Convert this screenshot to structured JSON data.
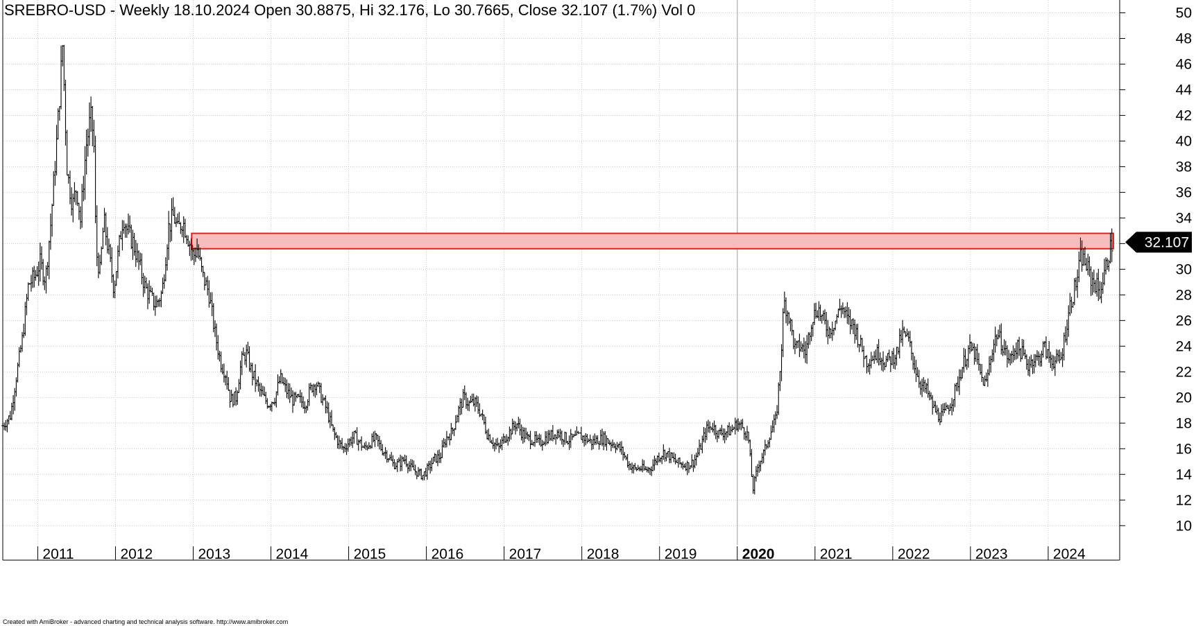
{
  "chart_data": {
    "type": "ohlc",
    "title": "SREBRO-USD - Weekly 18.10.2024 Open 30.8875, Hi 32.176, Lo 30.7665, Close 32.107 (1.7%) Vol 0",
    "last_value_label": "32.107",
    "footer": "Created with AmiBroker - advanced charting and technical analysis software. http://www.amibroker.com",
    "y_axis": {
      "min": 8.5,
      "max": 51,
      "ticks": [
        10,
        12,
        14,
        16,
        18,
        20,
        22,
        24,
        26,
        28,
        30,
        32,
        34,
        36,
        38,
        40,
        42,
        44,
        46,
        48,
        50
      ],
      "labels": [
        "10",
        "12",
        "14",
        "16",
        "18",
        "20",
        "22",
        "24",
        "26",
        "28",
        "30",
        "",
        "34",
        "36",
        "38",
        "40",
        "42",
        "44",
        "46",
        "48",
        "50"
      ],
      "position": "right"
    },
    "x_axis": {
      "start": 2010.55,
      "end": 2024.92,
      "ticks": [
        2011,
        2012,
        2013,
        2014,
        2015,
        2016,
        2017,
        2018,
        2019,
        2020,
        2021,
        2022,
        2023,
        2024
      ],
      "labels": [
        "2011",
        "2012",
        "2013",
        "2014",
        "2015",
        "2016",
        "2017",
        "2018",
        "2019",
        "2020",
        "2021",
        "2022",
        "2023",
        "2024"
      ],
      "bold_label": "2020"
    },
    "grid": true,
    "resistance_zone": {
      "from_x": 2012.98,
      "to_x": 2024.84,
      "low": 31.6,
      "high": 32.8,
      "fill": "#f7bcbc",
      "stroke": "#e8201a"
    },
    "price_path": [
      [
        2010.55,
        17.8
      ],
      [
        2010.65,
        18.6
      ],
      [
        2010.72,
        21.5
      ],
      [
        2010.8,
        24.5
      ],
      [
        2010.88,
        28.8
      ],
      [
        2010.96,
        29.4
      ],
      [
        2011.03,
        30.5
      ],
      [
        2011.1,
        29.2
      ],
      [
        2011.17,
        33.8
      ],
      [
        2011.25,
        40.5
      ],
      [
        2011.32,
        47.5
      ],
      [
        2011.38,
        37.5
      ],
      [
        2011.45,
        35.0
      ],
      [
        2011.5,
        36.5
      ],
      [
        2011.55,
        33.8
      ],
      [
        2011.62,
        39.5
      ],
      [
        2011.68,
        41.8
      ],
      [
        2011.72,
        40.4
      ],
      [
        2011.75,
        31.4
      ],
      [
        2011.8,
        29.8
      ],
      [
        2011.85,
        33.8
      ],
      [
        2011.92,
        31.0
      ],
      [
        2011.98,
        28.5
      ],
      [
        2012.04,
        31.5
      ],
      [
        2012.1,
        34.2
      ],
      [
        2012.16,
        32.8
      ],
      [
        2012.22,
        32.2
      ],
      [
        2012.3,
        30.5
      ],
      [
        2012.38,
        28.6
      ],
      [
        2012.45,
        27.8
      ],
      [
        2012.52,
        27.2
      ],
      [
        2012.6,
        28.2
      ],
      [
        2012.68,
        33.2
      ],
      [
        2012.75,
        34.2
      ],
      [
        2012.8,
        33.0
      ],
      [
        2012.86,
        33.8
      ],
      [
        2012.92,
        32.8
      ],
      [
        2013.0,
        31.0
      ],
      [
        2013.05,
        31.6
      ],
      [
        2013.12,
        29.5
      ],
      [
        2013.2,
        28.2
      ],
      [
        2013.28,
        25.0
      ],
      [
        2013.35,
        22.8
      ],
      [
        2013.42,
        21.8
      ],
      [
        2013.48,
        19.8
      ],
      [
        2013.55,
        20.0
      ],
      [
        2013.62,
        22.8
      ],
      [
        2013.68,
        23.5
      ],
      [
        2013.75,
        22.0
      ],
      [
        2013.82,
        21.0
      ],
      [
        2013.9,
        20.0
      ],
      [
        2013.97,
        19.5
      ],
      [
        2014.05,
        20.0
      ],
      [
        2014.12,
        21.5
      ],
      [
        2014.2,
        20.5
      ],
      [
        2014.28,
        19.8
      ],
      [
        2014.36,
        19.8
      ],
      [
        2014.44,
        19.5
      ],
      [
        2014.52,
        20.8
      ],
      [
        2014.58,
        21.2
      ],
      [
        2014.65,
        20.0
      ],
      [
        2014.72,
        19.0
      ],
      [
        2014.8,
        17.3
      ],
      [
        2014.87,
        16.5
      ],
      [
        2014.93,
        16.0
      ],
      [
        2015.0,
        16.5
      ],
      [
        2015.07,
        17.0
      ],
      [
        2015.14,
        16.5
      ],
      [
        2015.2,
        16.0
      ],
      [
        2015.28,
        16.5
      ],
      [
        2015.35,
        16.8
      ],
      [
        2015.42,
        16.0
      ],
      [
        2015.5,
        15.5
      ],
      [
        2015.57,
        14.8
      ],
      [
        2015.64,
        14.8
      ],
      [
        2015.72,
        15.2
      ],
      [
        2015.8,
        14.5
      ],
      [
        2015.87,
        14.2
      ],
      [
        2015.95,
        13.9
      ],
      [
        2016.03,
        14.5
      ],
      [
        2016.1,
        15.2
      ],
      [
        2016.18,
        15.4
      ],
      [
        2016.25,
        16.8
      ],
      [
        2016.33,
        17.3
      ],
      [
        2016.4,
        18.8
      ],
      [
        2016.48,
        20.0
      ],
      [
        2016.55,
        19.5
      ],
      [
        2016.62,
        19.6
      ],
      [
        2016.7,
        18.8
      ],
      [
        2016.78,
        17.2
      ],
      [
        2016.86,
        16.5
      ],
      [
        2016.93,
        16.0
      ],
      [
        2017.0,
        16.8
      ],
      [
        2017.08,
        17.4
      ],
      [
        2017.16,
        18.0
      ],
      [
        2017.22,
        17.3
      ],
      [
        2017.3,
        16.8
      ],
      [
        2017.38,
        16.7
      ],
      [
        2017.45,
        16.4
      ],
      [
        2017.52,
        16.8
      ],
      [
        2017.6,
        17.0
      ],
      [
        2017.68,
        17.3
      ],
      [
        2017.75,
        17.0
      ],
      [
        2017.82,
        16.7
      ],
      [
        2017.9,
        16.8
      ],
      [
        2017.97,
        17.0
      ],
      [
        2018.05,
        16.8
      ],
      [
        2018.13,
        16.5
      ],
      [
        2018.2,
        16.7
      ],
      [
        2018.28,
        16.8
      ],
      [
        2018.36,
        16.5
      ],
      [
        2018.44,
        16.3
      ],
      [
        2018.52,
        15.8
      ],
      [
        2018.6,
        14.8
      ],
      [
        2018.68,
        14.4
      ],
      [
        2018.75,
        14.5
      ],
      [
        2018.82,
        14.3
      ],
      [
        2018.9,
        14.6
      ],
      [
        2018.97,
        15.3
      ],
      [
        2019.05,
        15.7
      ],
      [
        2019.12,
        15.5
      ],
      [
        2019.2,
        15.0
      ],
      [
        2019.28,
        14.8
      ],
      [
        2019.36,
        14.7
      ],
      [
        2019.44,
        15.0
      ],
      [
        2019.52,
        16.0
      ],
      [
        2019.6,
        17.5
      ],
      [
        2019.68,
        17.8
      ],
      [
        2019.76,
        17.2
      ],
      [
        2019.84,
        17.3
      ],
      [
        2019.92,
        17.4
      ],
      [
        2020.0,
        18.0
      ],
      [
        2020.08,
        17.6
      ],
      [
        2020.14,
        17.0
      ],
      [
        2020.2,
        12.8
      ],
      [
        2020.27,
        14.8
      ],
      [
        2020.35,
        15.8
      ],
      [
        2020.42,
        17.2
      ],
      [
        2020.5,
        18.3
      ],
      [
        2020.56,
        23.0
      ],
      [
        2020.6,
        27.5
      ],
      [
        2020.66,
        26.5
      ],
      [
        2020.74,
        23.8
      ],
      [
        2020.82,
        24.0
      ],
      [
        2020.88,
        23.5
      ],
      [
        2020.96,
        26.2
      ],
      [
        2021.04,
        27.0
      ],
      [
        2021.1,
        26.0
      ],
      [
        2021.18,
        25.2
      ],
      [
        2021.26,
        26.0
      ],
      [
        2021.34,
        27.2
      ],
      [
        2021.42,
        26.0
      ],
      [
        2021.5,
        25.6
      ],
      [
        2021.58,
        24.2
      ],
      [
        2021.66,
        22.8
      ],
      [
        2021.74,
        23.2
      ],
      [
        2021.82,
        23.5
      ],
      [
        2021.9,
        22.8
      ],
      [
        2021.98,
        23.0
      ],
      [
        2022.06,
        23.6
      ],
      [
        2022.12,
        25.0
      ],
      [
        2022.2,
        24.5
      ],
      [
        2022.28,
        22.5
      ],
      [
        2022.36,
        21.0
      ],
      [
        2022.44,
        20.5
      ],
      [
        2022.52,
        19.2
      ],
      [
        2022.6,
        18.5
      ],
      [
        2022.66,
        18.7
      ],
      [
        2022.74,
        19.5
      ],
      [
        2022.82,
        20.8
      ],
      [
        2022.9,
        22.5
      ],
      [
        2022.98,
        23.8
      ],
      [
        2023.06,
        23.4
      ],
      [
        2023.14,
        21.5
      ],
      [
        2023.2,
        21.0
      ],
      [
        2023.28,
        23.8
      ],
      [
        2023.34,
        25.0
      ],
      [
        2023.42,
        24.0
      ],
      [
        2023.5,
        22.8
      ],
      [
        2023.58,
        24.0
      ],
      [
        2023.66,
        23.5
      ],
      [
        2023.74,
        22.5
      ],
      [
        2023.8,
        23.0
      ],
      [
        2023.88,
        23.0
      ],
      [
        2023.94,
        24.0
      ],
      [
        2024.0,
        23.2
      ],
      [
        2024.08,
        22.8
      ],
      [
        2024.16,
        22.9
      ],
      [
        2024.22,
        25.0
      ],
      [
        2024.28,
        27.2
      ],
      [
        2024.34,
        28.5
      ],
      [
        2024.38,
        29.5
      ],
      [
        2024.42,
        31.0
      ],
      [
        2024.48,
        30.5
      ],
      [
        2024.55,
        29.2
      ],
      [
        2024.6,
        29.0
      ],
      [
        2024.66,
        28.2
      ],
      [
        2024.72,
        29.5
      ],
      [
        2024.78,
        31.3
      ],
      [
        2024.83,
        32.1
      ]
    ]
  }
}
